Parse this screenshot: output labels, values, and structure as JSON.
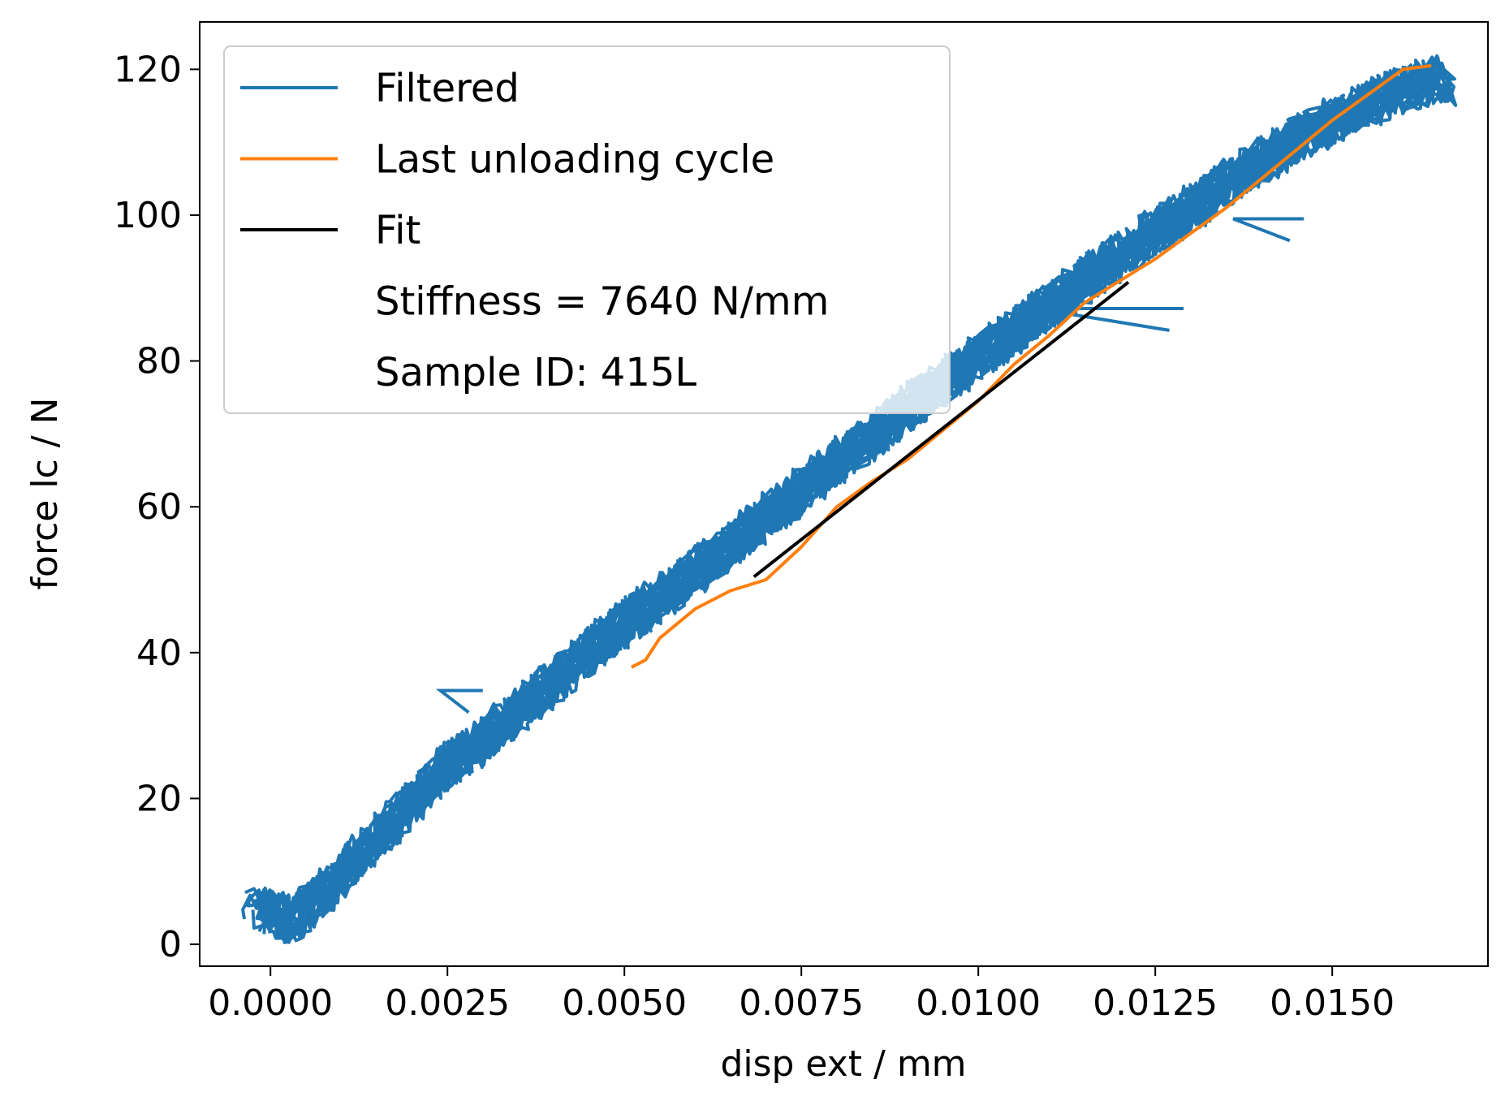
{
  "chart_data": {
    "type": "line",
    "title": "",
    "xlabel": "disp ext / mm",
    "ylabel": "force lc / N",
    "xlim": [
      -0.001,
      0.0172
    ],
    "ylim": [
      -3.0,
      126.5
    ],
    "xticks": [
      0.0,
      0.0025,
      0.005,
      0.0075,
      0.01,
      0.0125,
      0.015
    ],
    "xtick_labels": [
      "0.0000",
      "0.0025",
      "0.0050",
      "0.0075",
      "0.0100",
      "0.0125",
      "0.0150"
    ],
    "yticks": [
      0,
      20,
      40,
      60,
      80,
      100,
      120
    ],
    "ytick_labels": [
      "0",
      "20",
      "40",
      "60",
      "80",
      "100",
      "120"
    ],
    "grid": false,
    "legend_position": "upper-left",
    "series": [
      {
        "name": "Filtered",
        "color": "#1f77b4",
        "style": "repeated loading/unloading cycles",
        "cycles": 11,
        "x_range": [
          -0.0002,
          0.0164
        ],
        "y_range": [
          3.0,
          118.5
        ],
        "x": [
          -0.0002,
          0.0003,
          0.0008,
          0.0015,
          0.0025,
          0.003,
          0.004,
          0.005,
          0.006,
          0.007,
          0.008,
          0.009,
          0.01,
          0.011,
          0.012,
          0.013,
          0.014,
          0.015,
          0.0158,
          0.0164
        ],
        "y": [
          4.5,
          3.5,
          7.5,
          14.5,
          24.5,
          28.0,
          36.0,
          44.0,
          51.0,
          58.5,
          66.0,
          73.5,
          80.5,
          87.5,
          94.5,
          101.0,
          107.5,
          113.0,
          116.5,
          118.5
        ]
      },
      {
        "name": "Last unloading cycle",
        "color": "#ff7f0e",
        "x": [
          0.0164,
          0.016,
          0.0155,
          0.015,
          0.0145,
          0.014,
          0.0135,
          0.013,
          0.0125,
          0.012,
          0.0115,
          0.011,
          0.0105,
          0.01,
          0.0095,
          0.009,
          0.0085,
          0.008,
          0.0075,
          0.007,
          0.0065,
          0.006,
          0.0055,
          0.0053,
          0.0051
        ],
        "y": [
          120.5,
          120.0,
          116.5,
          113.0,
          109.0,
          105.0,
          101.0,
          97.5,
          94.0,
          91.0,
          88.0,
          83.5,
          79.5,
          74.5,
          70.5,
          66.5,
          63.5,
          60.0,
          54.5,
          50.0,
          48.5,
          46.0,
          42.0,
          39.0,
          38.0
        ]
      },
      {
        "name": "Fit",
        "color": "#000000",
        "x": [
          0.00683,
          0.01212
        ],
        "y": [
          50.4,
          90.8
        ]
      }
    ],
    "legend_entries": [
      {
        "label": "Filtered",
        "color": "#1f77b4"
      },
      {
        "label": "Last unloading cycle",
        "color": "#ff7f0e"
      },
      {
        "label": "Fit",
        "color": "#000000"
      },
      {
        "label": "Stiffness = 7640 N/mm",
        "color": ""
      },
      {
        "label": "Sample ID: 415L",
        "color": ""
      }
    ]
  }
}
